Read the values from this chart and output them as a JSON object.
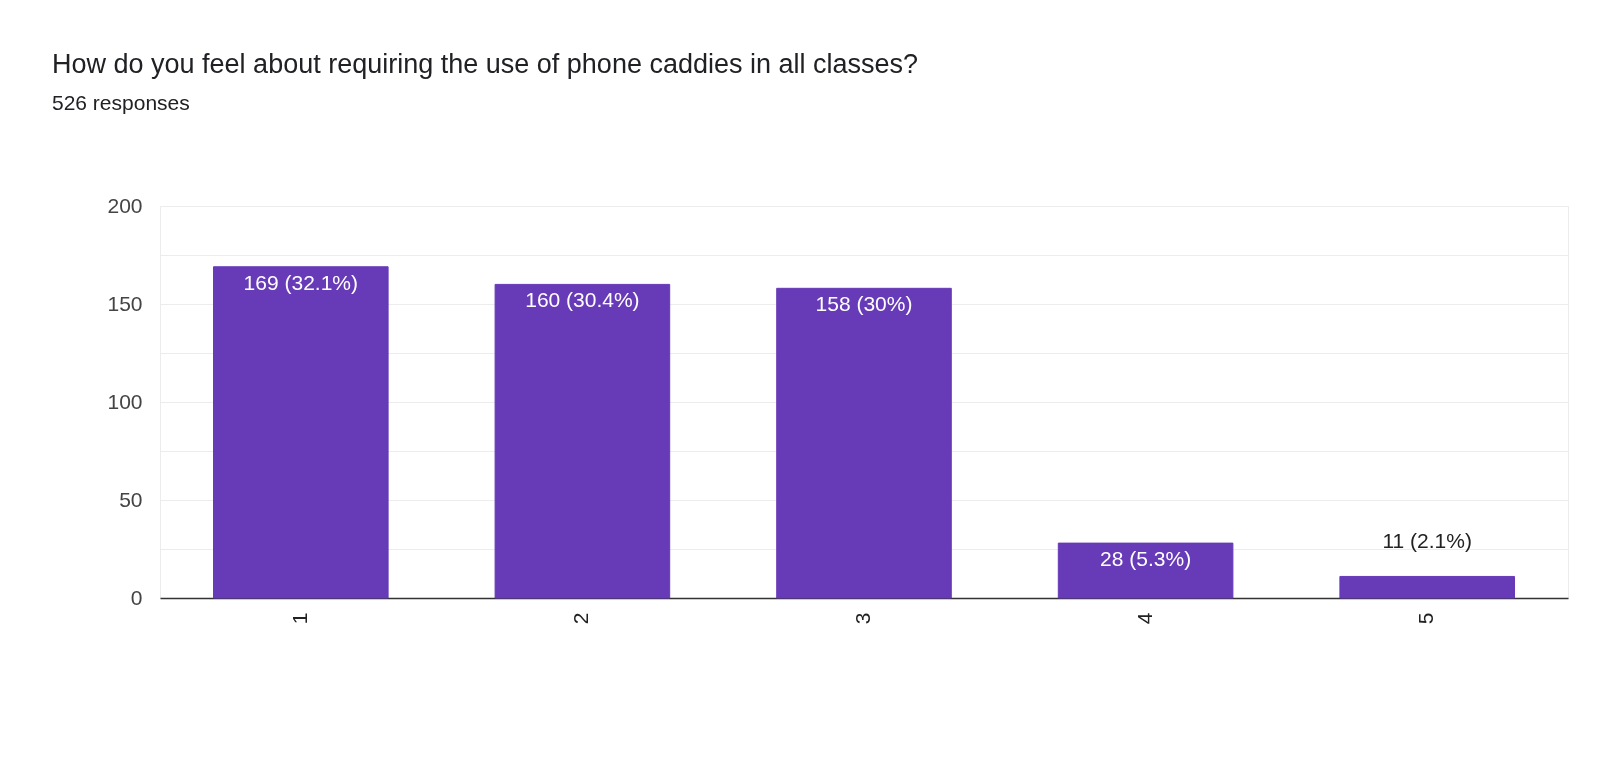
{
  "chart_data": {
    "type": "bar",
    "title": "How do you feel about requiring the use of phone caddies in all classes?",
    "subtitle": "526 responses",
    "categories": [
      "1",
      "2",
      "3",
      "4",
      "5"
    ],
    "values": [
      169,
      160,
      158,
      28,
      11
    ],
    "value_labels": [
      "169 (32.1%)",
      "160 (30.4%)",
      "158 (30%)",
      "28 (5.3%)",
      "11 (2.1%)"
    ],
    "color": "#673ab7",
    "ylim": [
      0,
      200
    ],
    "yticks": [
      0,
      {
        "value": 25,
        "label": null
      },
      50,
      {
        "value": 75,
        "label": null
      },
      100,
      {
        "value": 125,
        "label": null
      },
      150,
      {
        "value": 175,
        "label": null
      },
      200
    ],
    "grid": true
  }
}
